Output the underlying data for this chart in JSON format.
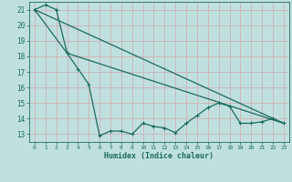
{
  "title": "",
  "xlabel": "Humidex (Indice chaleur)",
  "ylabel": "",
  "background_color": "#c0e0e0",
  "grid_color": "#d0b0b0",
  "line_color": "#1a6b5a",
  "xlim": [
    -0.5,
    23.5
  ],
  "ylim": [
    12.5,
    21.5
  ],
  "yticks": [
    13,
    14,
    15,
    16,
    17,
    18,
    19,
    20,
    21
  ],
  "xticks": [
    0,
    1,
    2,
    3,
    4,
    5,
    6,
    7,
    8,
    9,
    10,
    11,
    12,
    13,
    14,
    15,
    16,
    17,
    18,
    19,
    20,
    21,
    22,
    23
  ],
  "series1_x": [
    0,
    1,
    2,
    3,
    4,
    5,
    6,
    7,
    8,
    9,
    10,
    11,
    12,
    13,
    14,
    15,
    16,
    17,
    18,
    19,
    20,
    21,
    22,
    23
  ],
  "series1_y": [
    21.0,
    21.3,
    21.0,
    18.2,
    17.2,
    16.2,
    12.9,
    13.2,
    13.2,
    13.0,
    13.7,
    13.5,
    13.4,
    13.1,
    13.7,
    14.2,
    14.7,
    15.0,
    14.8,
    13.7,
    13.7,
    13.8,
    14.0,
    13.7
  ],
  "series2_x": [
    0,
    23
  ],
  "series2_y": [
    21.0,
    13.7
  ],
  "series3_x": [
    0,
    3,
    23
  ],
  "series3_y": [
    21.0,
    18.2,
    13.7
  ]
}
